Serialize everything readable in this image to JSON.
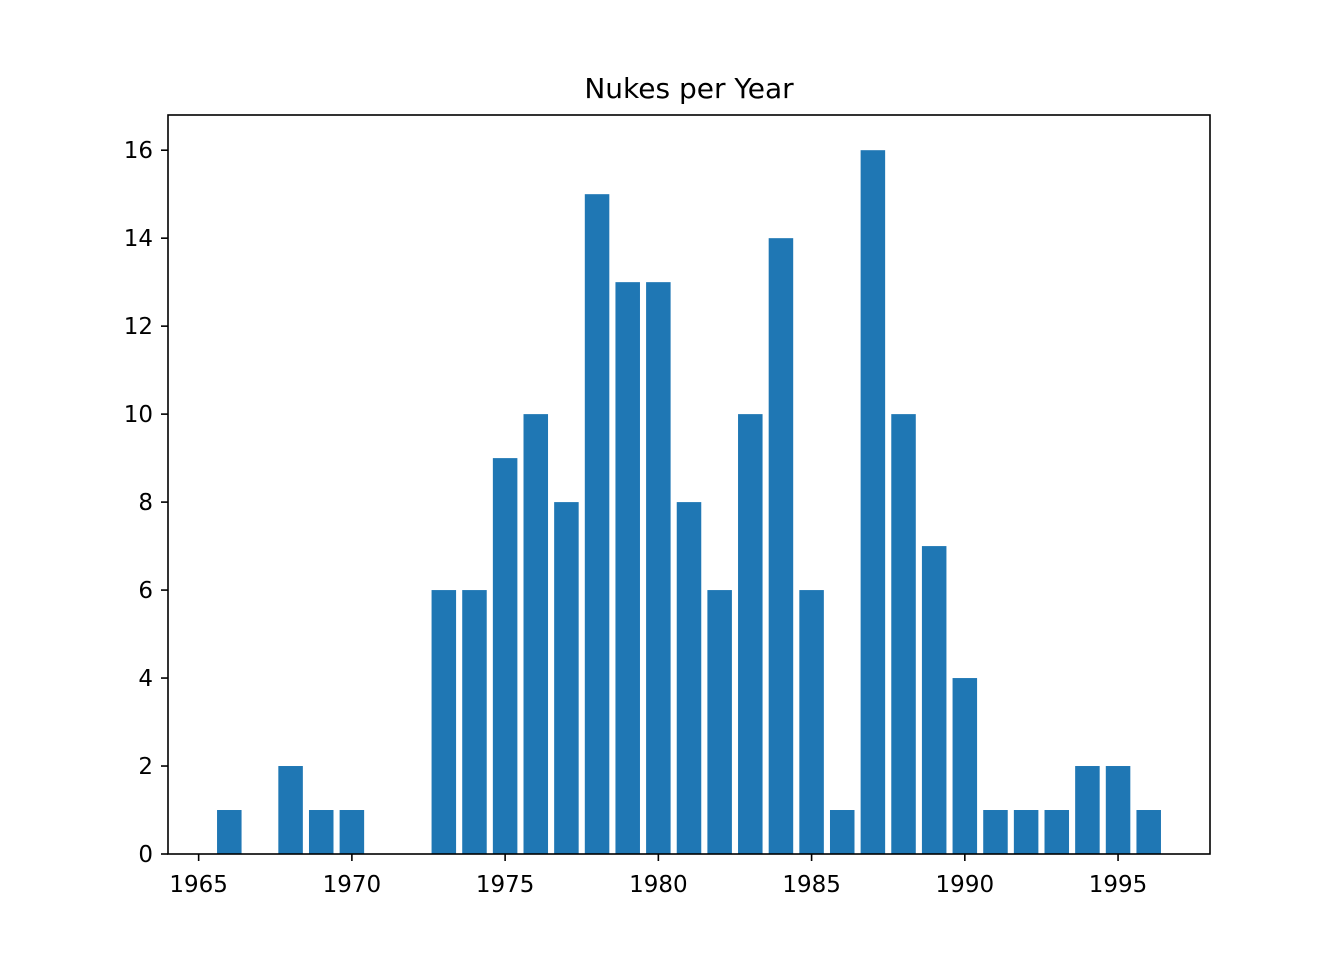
{
  "chart_data": {
    "type": "bar",
    "title": "Nukes per Year",
    "xlabel": "",
    "ylabel": "",
    "x": [
      1966,
      1968,
      1969,
      1970,
      1973,
      1974,
      1975,
      1976,
      1977,
      1978,
      1979,
      1980,
      1981,
      1982,
      1983,
      1984,
      1985,
      1986,
      1987,
      1988,
      1989,
      1990,
      1991,
      1992,
      1993,
      1994,
      1995,
      1996
    ],
    "values": [
      1,
      2,
      1,
      1,
      6,
      6,
      9,
      10,
      8,
      15,
      13,
      13,
      8,
      6,
      10,
      14,
      6,
      1,
      16,
      10,
      7,
      4,
      1,
      1,
      1,
      2,
      2,
      1
    ],
    "xlim": [
      1964,
      1998
    ],
    "ylim": [
      0,
      16.8
    ],
    "xticks": [
      1965,
      1970,
      1975,
      1980,
      1985,
      1990,
      1995
    ],
    "yticks": [
      0,
      2,
      4,
      6,
      8,
      10,
      12,
      14,
      16
    ],
    "bar_color": "#1f77b4",
    "grid": false,
    "legend": "none"
  }
}
